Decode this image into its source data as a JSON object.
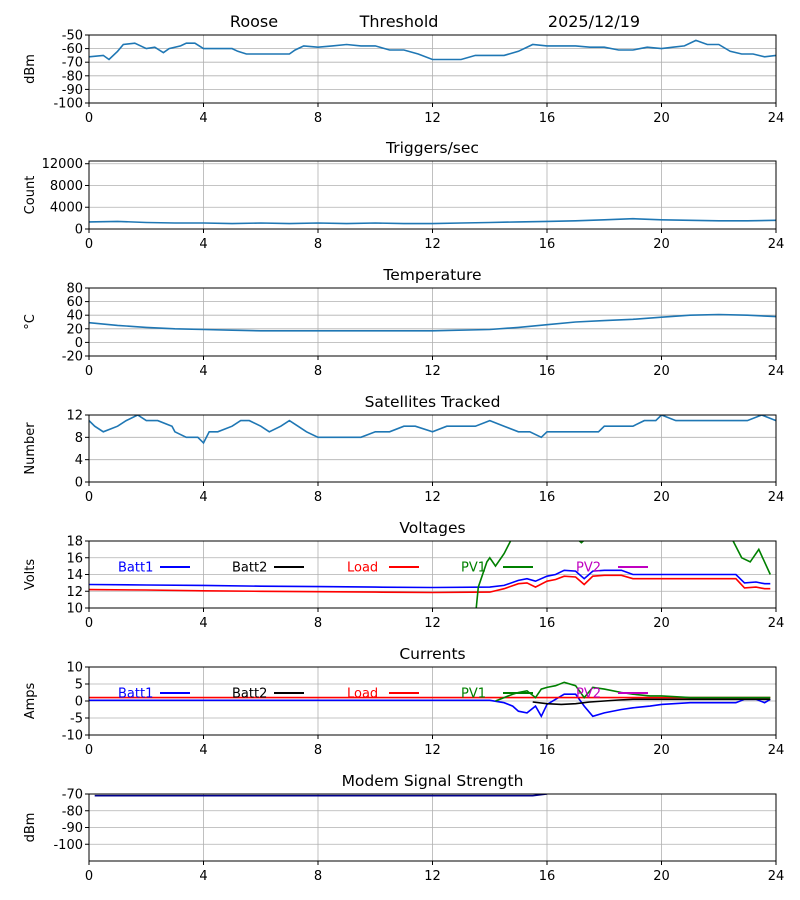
{
  "header": {
    "station": "Roose",
    "mode": "Threshold",
    "date": "2025/12/19"
  },
  "chart_data": [
    {
      "id": "signal",
      "type": "line",
      "title": "",
      "xlabel": "",
      "ylabel": "dBm",
      "xlim": [
        0,
        24
      ],
      "ylim": [
        -100,
        -50
      ],
      "xticks": [
        0,
        4,
        8,
        12,
        16,
        20,
        24
      ],
      "yticks": [
        -100,
        -90,
        -80,
        -70,
        -60,
        -50
      ],
      "grid": true,
      "series": [
        {
          "name": "signal",
          "color": "#1f77b4",
          "x": [
            0,
            0.5,
            0.7,
            1.0,
            1.2,
            1.6,
            2.0,
            2.3,
            2.6,
            2.8,
            3.2,
            3.4,
            3.7,
            4.0,
            4.5,
            5.0,
            5.2,
            5.5,
            6.0,
            6.5,
            7.0,
            7.2,
            7.5,
            8.0,
            8.5,
            9.0,
            9.5,
            10.0,
            10.5,
            11.0,
            11.5,
            12.0,
            12.5,
            13.0,
            13.5,
            14.0,
            14.5,
            15.0,
            15.5,
            16.0,
            16.5,
            17.0,
            17.5,
            18.0,
            18.5,
            19.0,
            19.5,
            20.0,
            20.4,
            20.8,
            21.2,
            21.6,
            22.0,
            22.4,
            22.8,
            23.2,
            23.6,
            24.0
          ],
          "y": [
            -66,
            -65,
            -68,
            -62,
            -57,
            -56,
            -60,
            -59,
            -63,
            -60,
            -58,
            -56,
            -56,
            -60,
            -60,
            -60,
            -62,
            -64,
            -64,
            -64,
            -64,
            -61,
            -58,
            -59,
            -58,
            -57,
            -58,
            -58,
            -61,
            -61,
            -64,
            -68,
            -68,
            -68,
            -65,
            -65,
            -65,
            -62,
            -57,
            -58,
            -58,
            -58,
            -59,
            -59,
            -61,
            -61,
            -59,
            -60,
            -59,
            -58,
            -54,
            -57,
            -57,
            -62,
            -64,
            -64,
            -66,
            -65
          ]
        }
      ]
    },
    {
      "id": "triggers",
      "type": "line",
      "title": "Triggers/sec",
      "xlabel": "",
      "ylabel": "Count",
      "xlim": [
        0,
        24
      ],
      "ylim": [
        0,
        12500
      ],
      "xticks": [
        0,
        4,
        8,
        12,
        16,
        20,
        24
      ],
      "yticks": [
        0,
        4000,
        8000,
        12000
      ],
      "grid": true,
      "series": [
        {
          "name": "triggers",
          "color": "#1f77b4",
          "x": [
            0,
            1,
            2,
            3,
            4,
            5,
            6,
            7,
            8,
            9,
            10,
            11,
            12,
            13,
            14,
            15,
            16,
            17,
            18,
            19,
            20,
            21,
            22,
            23,
            24
          ],
          "y": [
            1300,
            1400,
            1200,
            1100,
            1100,
            1000,
            1100,
            1000,
            1100,
            1000,
            1100,
            1000,
            1000,
            1100,
            1200,
            1300,
            1400,
            1500,
            1700,
            1900,
            1700,
            1600,
            1500,
            1500,
            1600
          ]
        }
      ]
    },
    {
      "id": "temperature",
      "type": "line",
      "title": "Temperature",
      "xlabel": "",
      "ylabel": "°C",
      "xlim": [
        0,
        24
      ],
      "ylim": [
        -20,
        80
      ],
      "xticks": [
        0,
        4,
        8,
        12,
        16,
        20,
        24
      ],
      "yticks": [
        -20,
        0,
        20,
        40,
        60,
        80
      ],
      "grid": true,
      "series": [
        {
          "name": "temperature",
          "color": "#1f77b4",
          "x": [
            0,
            1,
            2,
            3,
            4,
            5,
            6,
            7,
            8,
            10,
            12,
            14,
            15,
            16,
            17,
            18,
            19,
            20,
            21,
            22,
            23,
            24
          ],
          "y": [
            29,
            25,
            22,
            20,
            19,
            18,
            17,
            17,
            17,
            17,
            17,
            19,
            22,
            26,
            30,
            32,
            34,
            37,
            40,
            41,
            40,
            38
          ]
        }
      ]
    },
    {
      "id": "satellites",
      "type": "line",
      "title": "Satellites Tracked",
      "xlabel": "",
      "ylabel": "Number",
      "xlim": [
        0,
        24
      ],
      "ylim": [
        0,
        12
      ],
      "xticks": [
        0,
        4,
        8,
        12,
        16,
        20,
        24
      ],
      "yticks": [
        0,
        4,
        8,
        12
      ],
      "grid": true,
      "series": [
        {
          "name": "satellites",
          "color": "#1f77b4",
          "x": [
            0,
            0.2,
            0.5,
            1.0,
            1.3,
            1.7,
            2.0,
            2.4,
            2.9,
            3.0,
            3.4,
            3.8,
            4.0,
            4.2,
            4.5,
            5.0,
            5.3,
            5.6,
            6.0,
            6.3,
            6.7,
            7.0,
            7.3,
            7.6,
            8.0,
            8.5,
            9.0,
            9.5,
            10.0,
            10.5,
            11.0,
            11.4,
            12.0,
            12.5,
            13.0,
            13.5,
            14.0,
            14.5,
            15.0,
            15.4,
            15.8,
            16.0,
            16.5,
            17.0,
            17.4,
            17.8,
            18.0,
            18.5,
            19.0,
            19.4,
            19.8,
            20.0,
            20.5,
            21.0,
            21.5,
            22.0,
            22.5,
            23.0,
            23.5,
            24.0
          ],
          "y": [
            11,
            10,
            9,
            10,
            11,
            12,
            11,
            11,
            10,
            9,
            8,
            8,
            7,
            9,
            9,
            10,
            11,
            11,
            10,
            9,
            10,
            11,
            10,
            9,
            8,
            8,
            8,
            8,
            9,
            9,
            10,
            10,
            9,
            10,
            10,
            10,
            11,
            10,
            9,
            9,
            8,
            9,
            9,
            9,
            9,
            9,
            10,
            10,
            10,
            11,
            11,
            12,
            11,
            11,
            11,
            11,
            11,
            11,
            12,
            11
          ]
        }
      ]
    },
    {
      "id": "voltages",
      "type": "line",
      "title": "Voltages",
      "xlabel": "",
      "ylabel": "Volts",
      "xlim": [
        0,
        24
      ],
      "ylim": [
        10,
        18
      ],
      "xticks": [
        0,
        4,
        8,
        12,
        16,
        20,
        24
      ],
      "yticks": [
        10,
        12,
        14,
        16,
        18
      ],
      "grid": true,
      "legend": [
        "Batt1",
        "Batt2",
        "Load",
        "PV1",
        "PV2"
      ],
      "series": [
        {
          "name": "Batt1",
          "color": "#0000ff",
          "x": [
            0,
            2,
            4,
            6,
            8,
            10,
            12,
            14,
            14.5,
            15.0,
            15.3,
            15.6,
            16.0,
            16.3,
            16.6,
            17.0,
            17.3,
            17.6,
            18.0,
            18.6,
            19.0,
            20.0,
            21.0,
            22.0,
            22.6,
            22.9,
            23.3,
            23.6,
            23.8
          ],
          "y": [
            12.8,
            12.75,
            12.7,
            12.6,
            12.55,
            12.5,
            12.45,
            12.5,
            12.7,
            13.3,
            13.5,
            13.2,
            13.8,
            14.0,
            14.5,
            14.4,
            13.5,
            14.4,
            14.5,
            14.5,
            14.0,
            14.0,
            14.0,
            14.0,
            14.0,
            13.0,
            13.1,
            12.9,
            12.9
          ]
        },
        {
          "name": "Batt2",
          "color": "#000000",
          "x": [],
          "y": []
        },
        {
          "name": "Load",
          "color": "#ff0000",
          "x": [
            0,
            2,
            4,
            6,
            8,
            10,
            12,
            14,
            14.5,
            15.0,
            15.3,
            15.6,
            16.0,
            16.3,
            16.6,
            17.0,
            17.3,
            17.6,
            18.0,
            18.6,
            19.0,
            20.0,
            21.0,
            22.0,
            22.6,
            22.9,
            23.3,
            23.6,
            23.8
          ],
          "y": [
            12.2,
            12.15,
            12.05,
            12.0,
            11.95,
            11.9,
            11.85,
            11.9,
            12.3,
            12.9,
            13.0,
            12.5,
            13.2,
            13.4,
            13.8,
            13.7,
            12.8,
            13.8,
            13.9,
            13.9,
            13.5,
            13.5,
            13.5,
            13.5,
            13.5,
            12.4,
            12.5,
            12.3,
            12.3
          ]
        },
        {
          "name": "PV1",
          "color": "#008000",
          "x": [
            13.5,
            13.6,
            13.9,
            14.0,
            14.2,
            14.5,
            14.8,
            15.0,
            16.8,
            17.2,
            17.6,
            22.2,
            22.5,
            22.8,
            23.1,
            23.4,
            23.8
          ],
          "y": [
            9.0,
            12.5,
            15.5,
            16.0,
            15.0,
            16.5,
            18.5,
            19.5,
            19.0,
            17.8,
            19.0,
            19.0,
            18.0,
            16.0,
            15.5,
            17.0,
            14.0
          ]
        },
        {
          "name": "PV2",
          "color": "#c000c0",
          "x": [],
          "y": []
        }
      ]
    },
    {
      "id": "currents",
      "type": "line",
      "title": "Currents",
      "xlabel": "",
      "ylabel": "Amps",
      "xlim": [
        0,
        24
      ],
      "ylim": [
        -10,
        10
      ],
      "xticks": [
        0,
        4,
        8,
        12,
        16,
        20,
        24
      ],
      "yticks": [
        -10,
        -5,
        0,
        5,
        10
      ],
      "grid": true,
      "legend": [
        "Batt1",
        "Batt2",
        "Load",
        "PV1",
        "PV2"
      ],
      "series": [
        {
          "name": "Batt1",
          "color": "#0000ff",
          "x": [
            0,
            4,
            8,
            12,
            14,
            14.5,
            14.8,
            15.0,
            15.3,
            15.6,
            15.8,
            16.0,
            16.3,
            16.6,
            17.0,
            17.3,
            17.6,
            18.0,
            18.6,
            19.0,
            19.6,
            20.0,
            21.0,
            22.0,
            22.6,
            22.9,
            23.3,
            23.6,
            23.8
          ],
          "y": [
            0.2,
            0.2,
            0.2,
            0.2,
            0.2,
            -0.5,
            -1.5,
            -3.0,
            -3.5,
            -1.5,
            -4.5,
            -1.0,
            0.5,
            2.0,
            2.0,
            -1.5,
            -4.5,
            -3.5,
            -2.5,
            -2.0,
            -1.5,
            -1.0,
            -0.5,
            -0.5,
            -0.5,
            0.5,
            0.5,
            -0.5,
            0.5
          ]
        },
        {
          "name": "Batt2",
          "color": "#000000",
          "x": [
            15.5,
            16.0,
            16.5,
            17.0,
            17.5,
            18.0,
            18.5,
            19.0,
            20.0,
            21.0,
            22.0,
            23.0,
            23.8
          ],
          "y": [
            -0.3,
            -0.8,
            -1.0,
            -0.8,
            -0.3,
            0.0,
            0.3,
            0.5,
            0.5,
            0.5,
            0.5,
            0.5,
            0.5
          ]
        },
        {
          "name": "Load",
          "color": "#ff0000",
          "x": [
            0,
            4,
            8,
            12,
            14,
            16,
            18,
            20,
            22,
            23,
            23.8
          ],
          "y": [
            1.0,
            1.0,
            1.0,
            1.0,
            1.0,
            1.0,
            1.0,
            1.0,
            1.0,
            1.0,
            1.0
          ]
        },
        {
          "name": "PV1",
          "color": "#008000",
          "x": [
            14.2,
            14.5,
            14.8,
            15.0,
            15.3,
            15.6,
            15.8,
            16.0,
            16.3,
            16.6,
            17.0,
            17.3,
            17.6,
            18.0,
            18.6,
            19.0,
            19.6,
            20.0,
            21.0,
            22.0,
            22.6,
            22.9,
            23.3,
            23.6,
            23.8
          ],
          "y": [
            0.0,
            1.0,
            2.0,
            2.5,
            3.0,
            1.0,
            3.5,
            4.0,
            4.5,
            5.5,
            4.5,
            1.0,
            4.0,
            3.5,
            2.5,
            2.0,
            1.5,
            1.5,
            1.0,
            1.0,
            1.0,
            1.0,
            1.0,
            1.0,
            1.0
          ]
        },
        {
          "name": "PV2",
          "color": "#c000c0",
          "x": [],
          "y": []
        }
      ]
    },
    {
      "id": "modem",
      "type": "line",
      "title": "Modem Signal Strength",
      "xlabel": "",
      "ylabel": "dBm",
      "xlim": [
        0,
        24
      ],
      "ylim": [
        -110,
        -70
      ],
      "xticks": [
        0,
        4,
        8,
        12,
        16,
        20,
        24
      ],
      "yticks": [
        -100,
        -90,
        -80,
        -70
      ],
      "grid": true,
      "series": [
        {
          "name": "modem",
          "color": "#00008b",
          "x": [
            0.2,
            2,
            4,
            6,
            8,
            10,
            12,
            14,
            15.5,
            16.0
          ],
          "y": [
            -71,
            -71,
            -71,
            -71,
            -71,
            -71,
            -71,
            -71,
            -71,
            -70
          ]
        }
      ]
    }
  ]
}
